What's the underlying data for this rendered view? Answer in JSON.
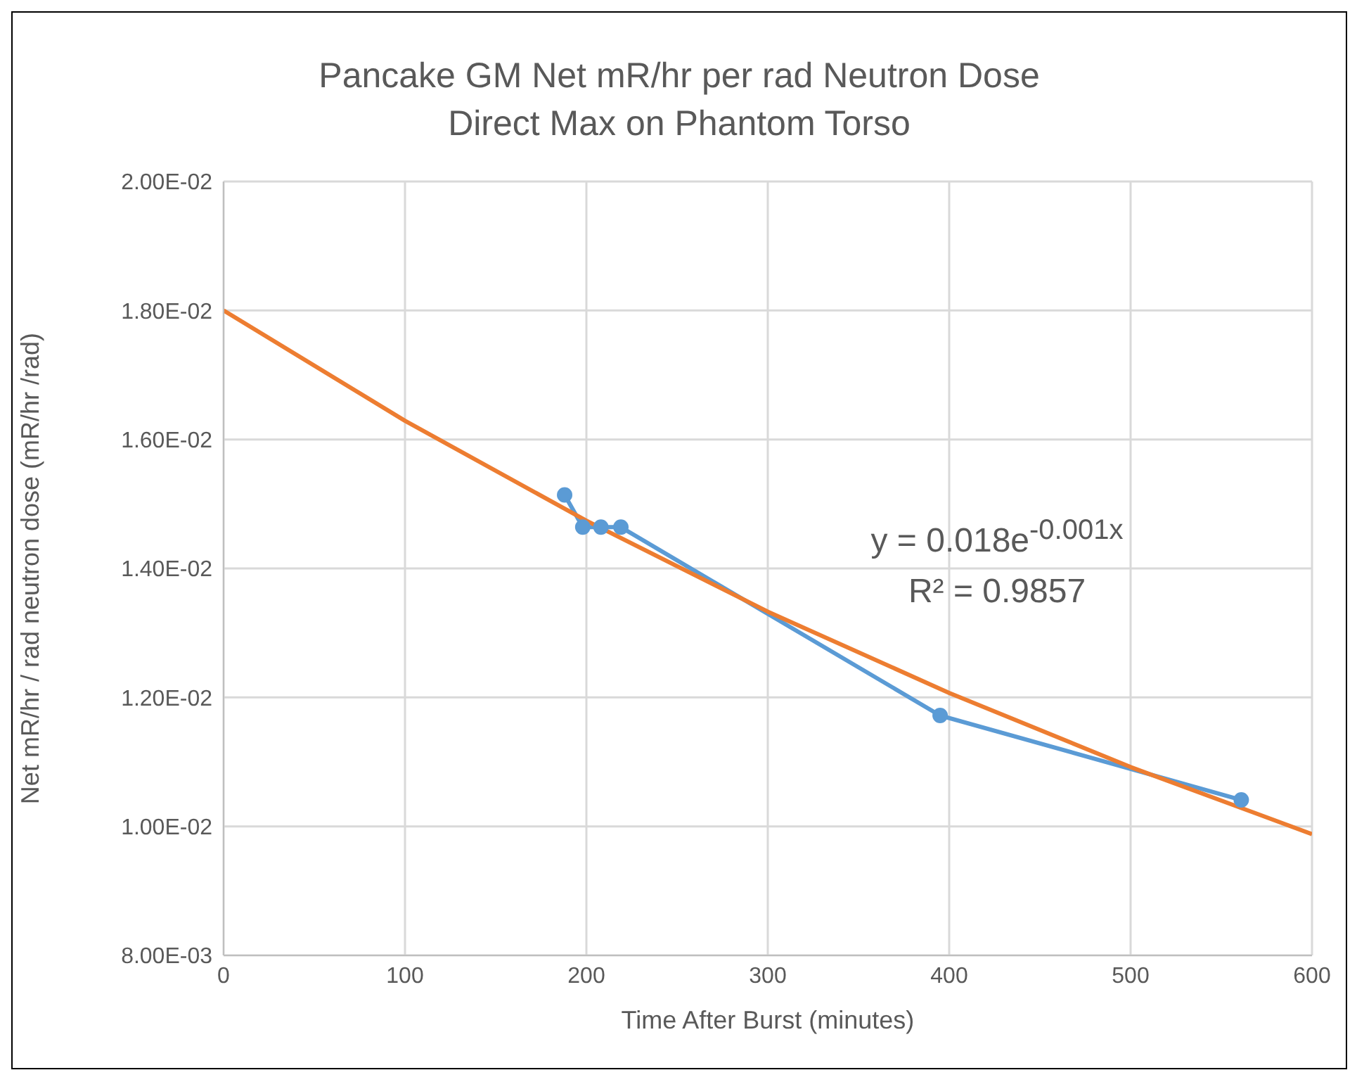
{
  "chart_data": {
    "type": "line",
    "title": "Pancake GM Net mR/hr per rad Neutron Dose",
    "subtitle": "Direct Max on Phantom Torso",
    "xlabel": "Time After Burst (minutes)",
    "ylabel": "Net mR/hr / rad neutron dose (mR/hr /rad)",
    "series": [
      {
        "color": "#5b9bd5",
        "marker": "circle",
        "x": [
          188,
          198,
          208,
          219,
          395,
          561
        ],
        "values": [
          0.01514,
          0.01464,
          0.01464,
          0.01464,
          0.01172,
          0.01041
        ]
      },
      {
        "color": "#ed7d31",
        "marker": "none",
        "x": [
          0,
          100,
          200,
          300,
          400,
          500,
          600
        ],
        "values": [
          0.018,
          0.01629,
          0.01474,
          0.01333,
          0.01207,
          0.01092,
          0.00988
        ]
      }
    ],
    "xlim": [
      0,
      600
    ],
    "xticks": [
      0,
      100,
      200,
      300,
      400,
      500,
      600
    ],
    "ylim": [
      0.008,
      0.02
    ],
    "yticks": [
      {
        "value": 0.008,
        "label": "8.00E-03"
      },
      {
        "value": 0.01,
        "label": "1.00E-02"
      },
      {
        "value": 0.012,
        "label": "1.20E-02"
      },
      {
        "value": 0.014,
        "label": "1.40E-02"
      },
      {
        "value": 0.016,
        "label": "1.60E-02"
      },
      {
        "value": 0.018,
        "label": "1.80E-02"
      },
      {
        "value": 0.02,
        "label": "2.00E-02"
      }
    ],
    "grid": true,
    "annotations": [
      "y = 0.018e$^{-0.001x}$",
      "R² = 0.9857"
    ]
  }
}
